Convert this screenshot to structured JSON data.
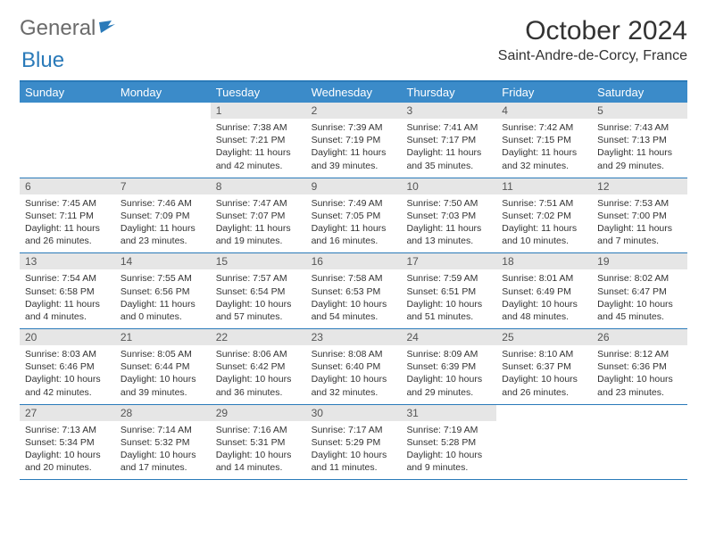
{
  "logo": {
    "word1": "General",
    "word2": "Blue"
  },
  "title": "October 2024",
  "location": "Saint-Andre-de-Corcy, France",
  "colors": {
    "header_bg": "#3b8bc9",
    "border": "#2a7ab9",
    "daynum_bg": "#e6e6e6",
    "text": "#333333",
    "logo_gray": "#6b6b6b"
  },
  "day_headers": [
    "Sunday",
    "Monday",
    "Tuesday",
    "Wednesday",
    "Thursday",
    "Friday",
    "Saturday"
  ],
  "weeks": [
    [
      null,
      null,
      {
        "n": "1",
        "sr": "7:38 AM",
        "ss": "7:21 PM",
        "dl": "11 hours and 42 minutes."
      },
      {
        "n": "2",
        "sr": "7:39 AM",
        "ss": "7:19 PM",
        "dl": "11 hours and 39 minutes."
      },
      {
        "n": "3",
        "sr": "7:41 AM",
        "ss": "7:17 PM",
        "dl": "11 hours and 35 minutes."
      },
      {
        "n": "4",
        "sr": "7:42 AM",
        "ss": "7:15 PM",
        "dl": "11 hours and 32 minutes."
      },
      {
        "n": "5",
        "sr": "7:43 AM",
        "ss": "7:13 PM",
        "dl": "11 hours and 29 minutes."
      }
    ],
    [
      {
        "n": "6",
        "sr": "7:45 AM",
        "ss": "7:11 PM",
        "dl": "11 hours and 26 minutes."
      },
      {
        "n": "7",
        "sr": "7:46 AM",
        "ss": "7:09 PM",
        "dl": "11 hours and 23 minutes."
      },
      {
        "n": "8",
        "sr": "7:47 AM",
        "ss": "7:07 PM",
        "dl": "11 hours and 19 minutes."
      },
      {
        "n": "9",
        "sr": "7:49 AM",
        "ss": "7:05 PM",
        "dl": "11 hours and 16 minutes."
      },
      {
        "n": "10",
        "sr": "7:50 AM",
        "ss": "7:03 PM",
        "dl": "11 hours and 13 minutes."
      },
      {
        "n": "11",
        "sr": "7:51 AM",
        "ss": "7:02 PM",
        "dl": "11 hours and 10 minutes."
      },
      {
        "n": "12",
        "sr": "7:53 AM",
        "ss": "7:00 PM",
        "dl": "11 hours and 7 minutes."
      }
    ],
    [
      {
        "n": "13",
        "sr": "7:54 AM",
        "ss": "6:58 PM",
        "dl": "11 hours and 4 minutes."
      },
      {
        "n": "14",
        "sr": "7:55 AM",
        "ss": "6:56 PM",
        "dl": "11 hours and 0 minutes."
      },
      {
        "n": "15",
        "sr": "7:57 AM",
        "ss": "6:54 PM",
        "dl": "10 hours and 57 minutes."
      },
      {
        "n": "16",
        "sr": "7:58 AM",
        "ss": "6:53 PM",
        "dl": "10 hours and 54 minutes."
      },
      {
        "n": "17",
        "sr": "7:59 AM",
        "ss": "6:51 PM",
        "dl": "10 hours and 51 minutes."
      },
      {
        "n": "18",
        "sr": "8:01 AM",
        "ss": "6:49 PM",
        "dl": "10 hours and 48 minutes."
      },
      {
        "n": "19",
        "sr": "8:02 AM",
        "ss": "6:47 PM",
        "dl": "10 hours and 45 minutes."
      }
    ],
    [
      {
        "n": "20",
        "sr": "8:03 AM",
        "ss": "6:46 PM",
        "dl": "10 hours and 42 minutes."
      },
      {
        "n": "21",
        "sr": "8:05 AM",
        "ss": "6:44 PM",
        "dl": "10 hours and 39 minutes."
      },
      {
        "n": "22",
        "sr": "8:06 AM",
        "ss": "6:42 PM",
        "dl": "10 hours and 36 minutes."
      },
      {
        "n": "23",
        "sr": "8:08 AM",
        "ss": "6:40 PM",
        "dl": "10 hours and 32 minutes."
      },
      {
        "n": "24",
        "sr": "8:09 AM",
        "ss": "6:39 PM",
        "dl": "10 hours and 29 minutes."
      },
      {
        "n": "25",
        "sr": "8:10 AM",
        "ss": "6:37 PM",
        "dl": "10 hours and 26 minutes."
      },
      {
        "n": "26",
        "sr": "8:12 AM",
        "ss": "6:36 PM",
        "dl": "10 hours and 23 minutes."
      }
    ],
    [
      {
        "n": "27",
        "sr": "7:13 AM",
        "ss": "5:34 PM",
        "dl": "10 hours and 20 minutes."
      },
      {
        "n": "28",
        "sr": "7:14 AM",
        "ss": "5:32 PM",
        "dl": "10 hours and 17 minutes."
      },
      {
        "n": "29",
        "sr": "7:16 AM",
        "ss": "5:31 PM",
        "dl": "10 hours and 14 minutes."
      },
      {
        "n": "30",
        "sr": "7:17 AM",
        "ss": "5:29 PM",
        "dl": "10 hours and 11 minutes."
      },
      {
        "n": "31",
        "sr": "7:19 AM",
        "ss": "5:28 PM",
        "dl": "10 hours and 9 minutes."
      },
      null,
      null
    ]
  ],
  "labels": {
    "sunrise": "Sunrise:",
    "sunset": "Sunset:",
    "daylight": "Daylight:"
  }
}
